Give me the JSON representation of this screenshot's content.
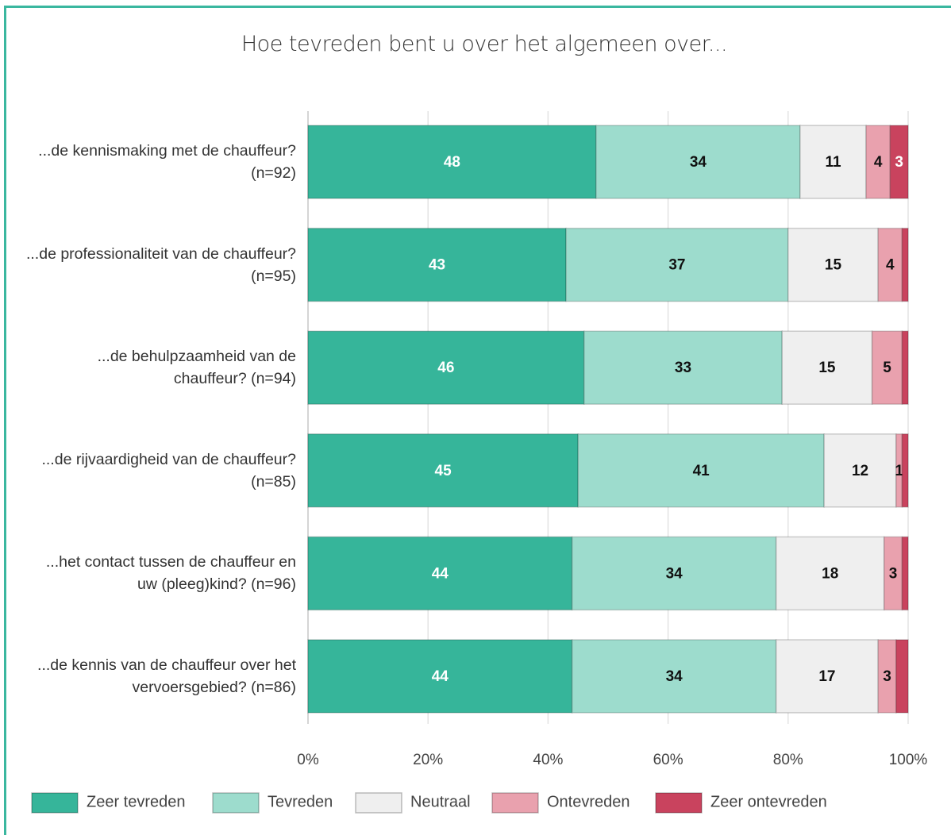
{
  "chart_data": {
    "type": "stacked-bar-horizontal-percent",
    "title": "Hoe tevreden bent u over het algemeen over...",
    "categories": [
      "...de kennismaking met de chauffeur? (n=92)",
      "...de professionaliteit van de chauffeur? (n=95)",
      "...de behulpzaamheid van de chauffeur? (n=94)",
      "...de rijvaardigheid van de chauffeur? (n=85)",
      "...het contact tussen de chauffeur en uw (pleeg)kind? (n=96)",
      "...de kennis van de chauffeur over het vervoersgebied? (n=86)"
    ],
    "series": [
      {
        "name": "Zeer tevreden",
        "color": "#36b59a",
        "label_color": "#ffffff",
        "values": [
          48,
          43,
          46,
          45,
          44,
          44
        ]
      },
      {
        "name": "Tevreden",
        "color": "#9ddccd",
        "label_color": "#111111",
        "values": [
          34,
          37,
          33,
          41,
          34,
          34
        ]
      },
      {
        "name": "Neutraal",
        "color": "#efefef",
        "label_color": "#111111",
        "values": [
          11,
          15,
          15,
          12,
          18,
          17
        ]
      },
      {
        "name": "Ontevreden",
        "color": "#e9a1ae",
        "label_color": "#111111",
        "values": [
          4,
          4,
          5,
          1,
          3,
          3
        ]
      },
      {
        "name": "Zeer ontevreden",
        "color": "#c9435e",
        "label_color": "#ffffff",
        "values": [
          3,
          1,
          1,
          1,
          1,
          2
        ],
        "value_labels": [
          "3",
          null,
          null,
          null,
          null,
          null
        ]
      }
    ],
    "xlim": [
      0,
      100
    ],
    "xticks": [
      {
        "value": 0,
        "label": "0%"
      },
      {
        "value": 20,
        "label": "20%"
      },
      {
        "value": 40,
        "label": "40%"
      },
      {
        "value": 60,
        "label": "60%"
      },
      {
        "value": 80,
        "label": "80%"
      },
      {
        "value": 100,
        "label": "100%"
      }
    ],
    "grid": true,
    "legend": "bottom"
  }
}
